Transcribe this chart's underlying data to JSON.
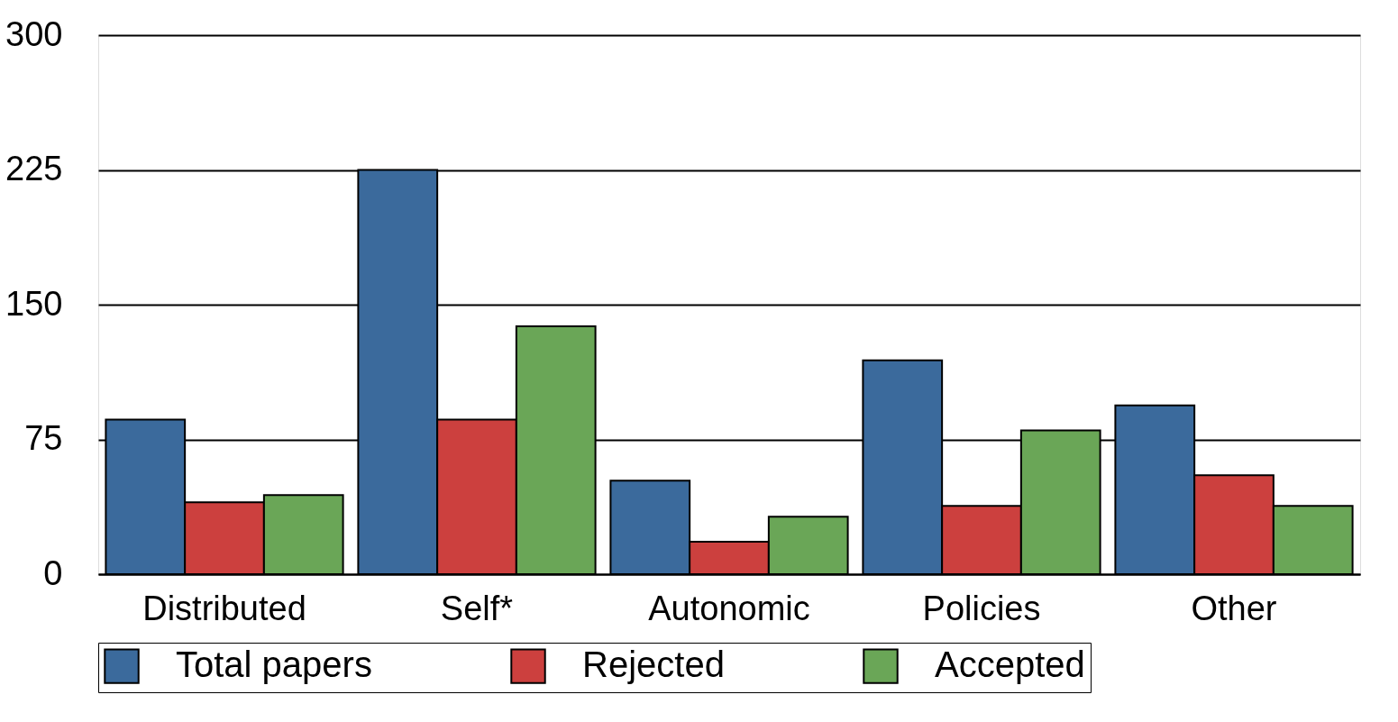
{
  "chart_data": {
    "type": "bar",
    "categories": [
      "Distributed",
      "Self*",
      "Autonomic",
      "Policies",
      "Other"
    ],
    "series": [
      {
        "name": "Total papers",
        "color": "#3b6a9c",
        "values": [
          86,
          225,
          52,
          119,
          94
        ]
      },
      {
        "name": "Rejected",
        "color": "#cc403e",
        "values": [
          40,
          86,
          18,
          38,
          55
        ]
      },
      {
        "name": "Accepted",
        "color": "#6aa657",
        "values": [
          44,
          138,
          32,
          80,
          38
        ]
      }
    ],
    "ylim": [
      0,
      300
    ],
    "yticks": [
      0,
      75,
      150,
      225,
      300
    ],
    "grid": "y",
    "legend": "bottom"
  }
}
